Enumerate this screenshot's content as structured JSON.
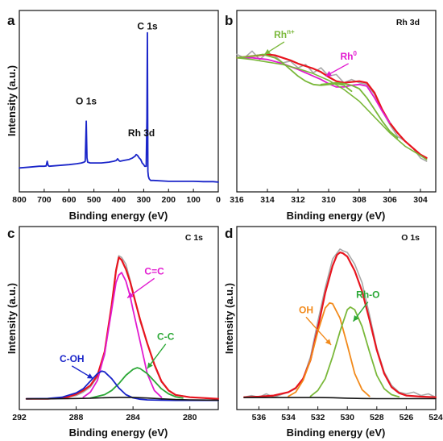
{
  "chart_data": [
    {
      "panel": "a",
      "type": "line",
      "title": "",
      "xlabel": "Binding energy (eV)",
      "ylabel": "Intensity (a.u.)",
      "xlim": [
        800,
        0
      ],
      "ylim": [
        0,
        100
      ],
      "x_reversed": true,
      "xticks": [
        800,
        700,
        600,
        500,
        400,
        300,
        200,
        100,
        0
      ],
      "grid": false,
      "annotations": [
        {
          "text": "C 1s",
          "x": 285,
          "y": 92
        },
        {
          "text": "O 1s",
          "x": 531,
          "y": 47
        },
        {
          "text": "Rh 3d",
          "x": 309,
          "y": 28
        }
      ],
      "series": [
        {
          "color": "#1a25c9",
          "x": [
            800,
            760,
            720,
            700,
            692,
            688,
            684,
            680,
            640,
            600,
            570,
            550,
            540,
            535,
            531,
            528,
            525,
            515,
            500,
            470,
            440,
            420,
            410,
            405,
            400,
            395,
            380,
            360,
            345,
            335,
            330,
            325,
            318,
            312,
            309,
            306,
            300,
            296,
            290,
            287,
            285,
            283,
            281,
            278,
            272,
            260,
            200,
            150,
            100,
            60,
            20,
            0
          ],
          "y": [
            10,
            10.5,
            11,
            11,
            11.2,
            14,
            11.5,
            11,
            11.5,
            12,
            12.5,
            13,
            13.5,
            14,
            38,
            16,
            13.5,
            13,
            13,
            13,
            13.5,
            14,
            14.5,
            15.5,
            14.5,
            14,
            14.5,
            15,
            16,
            17,
            18,
            17.5,
            16,
            15,
            14,
            13,
            12,
            11,
            11,
            40,
            91,
            8,
            5,
            3.5,
            2.5,
            2.5,
            2,
            2,
            2,
            1.8,
            1.8,
            1.5
          ]
        }
      ]
    },
    {
      "panel": "b",
      "type": "line",
      "title": "Rh 3d",
      "xlabel": "Binding energy (eV)",
      "ylabel": "",
      "xlim": [
        316,
        303
      ],
      "ylim": [
        0,
        100
      ],
      "x_reversed": true,
      "xticks": [
        316,
        314,
        312,
        310,
        308,
        306,
        304
      ],
      "grid": false,
      "annotations": [
        {
          "text": "Rh",
          "sup": "n+",
          "x": 312.9,
          "y": 87,
          "color": "#7ab83a",
          "arrow_to": [
            314.2,
            78
          ]
        },
        {
          "text": "Rh",
          "sup": "0",
          "x": 308.7,
          "y": 74,
          "color": "#e21bd0",
          "arrow_to": [
            310.2,
            65
          ]
        }
      ],
      "series": [
        {
          "role": "raw",
          "color": "#a8a8a8",
          "x": [
            316,
            315.5,
            315,
            314.5,
            314,
            313.5,
            313,
            312.5,
            312,
            311.5,
            311,
            310.5,
            310,
            309.5,
            309,
            308.5,
            308,
            307.5,
            307,
            306.5,
            306,
            305.5,
            305,
            304.5,
            304,
            303.6
          ],
          "y": [
            78,
            76,
            80,
            75,
            79,
            77,
            73,
            74,
            70,
            72,
            67,
            70,
            65,
            66,
            61,
            63,
            61,
            60,
            54,
            44,
            36,
            29,
            26,
            22,
            16,
            14
          ]
        },
        {
          "role": "fit",
          "color": "#e8141e",
          "x": [
            316,
            315,
            314,
            313.5,
            313,
            312.5,
            312,
            311.5,
            311,
            310.5,
            310,
            309.5,
            309,
            308.5,
            308,
            307.5,
            307,
            306.5,
            306,
            305.5,
            305,
            304.5,
            304,
            303.6
          ],
          "y": [
            76,
            77,
            78,
            77.5,
            76,
            74.5,
            72.5,
            71,
            69.5,
            67.5,
            64.5,
            62,
            61,
            61.5,
            62,
            61,
            55,
            45,
            37,
            31,
            26,
            22,
            18,
            16
          ]
        },
        {
          "role": "component",
          "color": "#e21bd0",
          "x": [
            316,
            315,
            314,
            313,
            312,
            311,
            310.5,
            310,
            309.5,
            309,
            308.5,
            308,
            307.5,
            307,
            306.5,
            306
          ],
          "y": [
            76,
            76,
            75,
            72.5,
            69,
            65,
            63,
            60.5,
            58.5,
            58.5,
            59.5,
            60,
            59,
            52,
            44,
            37
          ]
        },
        {
          "role": "component",
          "color": "#7ab83a",
          "x": [
            316,
            315,
            314.3,
            313.5,
            313,
            312.5,
            312,
            311.5,
            311,
            310.5,
            310,
            309.5,
            309,
            308.5
          ],
          "y": [
            76,
            77,
            78,
            76,
            73,
            69,
            65,
            62,
            60,
            59.5,
            60,
            60.5,
            59.5,
            56
          ]
        },
        {
          "role": "component",
          "color": "#7ab83a",
          "x": [
            310.5,
            310,
            309.5,
            309,
            308.5,
            308,
            307.5,
            307,
            306.5,
            306,
            305.5
          ],
          "y": [
            60,
            60.5,
            61,
            60.5,
            59.5,
            57.5,
            52,
            45,
            38,
            32,
            28
          ]
        },
        {
          "role": "background",
          "color": "#7ab83a",
          "x": [
            316,
            315,
            314,
            313,
            312,
            311,
            310,
            309,
            308,
            307,
            306,
            305,
            304,
            303.6
          ],
          "y": [
            76,
            75,
            73.5,
            72,
            69.5,
            66.5,
            62.5,
            57,
            50,
            40.5,
            31,
            23,
            17.5,
            15
          ]
        }
      ]
    },
    {
      "panel": "c",
      "type": "line",
      "title": "C 1s",
      "xlabel": "Binding energy (eV)",
      "ylabel": "Intensity (a.u.)",
      "xlim": [
        292,
        278
      ],
      "ylim": [
        0,
        100
      ],
      "x_reversed": true,
      "xticks": [
        292,
        288,
        284,
        280
      ],
      "grid": false,
      "annotations": [
        {
          "text": "C=C",
          "x": 282.5,
          "y": 75,
          "color": "#e21bd0",
          "arrow_to": [
            284.4,
            62
          ]
        },
        {
          "text": "C-C",
          "x": 281.7,
          "y": 36,
          "color": "#2ba836",
          "arrow_to": [
            283,
            20
          ]
        },
        {
          "text": "C-OH",
          "x": 288.3,
          "y": 23,
          "color": "#1a25c9",
          "arrow_to": [
            286.8,
            14
          ]
        }
      ],
      "series": [
        {
          "role": "raw",
          "color": "#a8a8a8",
          "x": [
            291.5,
            290,
            289,
            288,
            287.5,
            287,
            286.5,
            286,
            285.5,
            285.2,
            285,
            284.8,
            284.5,
            284,
            283.5,
            283,
            282.5,
            282,
            281.5,
            281,
            280,
            279,
            278
          ],
          "y": [
            2,
            2,
            2.5,
            4,
            6,
            9,
            15,
            28,
            58,
            79,
            87,
            86,
            82,
            66,
            48,
            35,
            22,
            12,
            7,
            4.5,
            3,
            2.5,
            2
          ]
        },
        {
          "role": "fit",
          "color": "#e8141e",
          "x": [
            291.5,
            290,
            289,
            288.5,
            288,
            287.5,
            287,
            286.5,
            286,
            285.5,
            285.2,
            285,
            284.8,
            284.5,
            284.2,
            284,
            283.5,
            283,
            282.5,
            282,
            281.5,
            281,
            280,
            279,
            278
          ],
          "y": [
            2,
            2,
            2.6,
            3.3,
            4.8,
            7,
            10,
            16,
            30,
            58,
            78,
            86,
            84.5,
            79,
            71.5,
            65,
            49,
            35,
            22.5,
            12.5,
            7,
            4.3,
            3,
            2.5,
            2
          ]
        },
        {
          "role": "component",
          "color": "#e21bd0",
          "x": [
            287.5,
            287,
            286.5,
            286,
            285.5,
            285.2,
            285,
            284.8,
            284.5,
            284.2,
            284,
            283.5,
            283,
            282.5,
            282
          ],
          "y": [
            3,
            6,
            13,
            29,
            55,
            71,
            75.5,
            77,
            72,
            63,
            55,
            36,
            17,
            7,
            3
          ]
        },
        {
          "role": "component",
          "color": "#2ba836",
          "x": [
            287,
            286,
            285.5,
            285,
            284.5,
            284,
            283.7,
            283.5,
            283,
            282.5,
            282,
            281.5,
            281,
            280.5
          ],
          "y": [
            2.5,
            4.5,
            7,
            11,
            16,
            19.5,
            20.5,
            20,
            17,
            12.5,
            8,
            5,
            3.2,
            2.5
          ]
        },
        {
          "role": "component",
          "color": "#1a25c9",
          "x": [
            291.5,
            290,
            289,
            288,
            287.5,
            287,
            286.5,
            286.2,
            286,
            285.5,
            285,
            284.5,
            284,
            283.5,
            283,
            282,
            281,
            280,
            279,
            278
          ],
          "y": [
            2,
            2.2,
            3,
            5.5,
            8,
            12.5,
            17,
            18.5,
            18,
            14,
            8.5,
            4.5,
            2.6,
            1.8,
            1.4,
            1.2,
            1.1,
            1.1,
            1.1,
            1.1
          ]
        },
        {
          "role": "background",
          "color": "#111111",
          "x": [
            291.5,
            290,
            288,
            287,
            286,
            285,
            284,
            283,
            282,
            281,
            280,
            279,
            278
          ],
          "y": [
            2,
            2,
            2.2,
            2.4,
            2.7,
            2.9,
            2.9,
            2.5,
            2.0,
            1.6,
            1.4,
            1.3,
            1.2
          ]
        }
      ]
    },
    {
      "panel": "d",
      "type": "line",
      "title": "O 1s",
      "xlabel": "Binding energy (eV)",
      "ylabel": "Intensity (a.u.)",
      "xlim": [
        537.5,
        524
      ],
      "ylim": [
        0,
        100
      ],
      "x_reversed": true,
      "xticks": [
        536,
        534,
        532,
        530,
        528,
        526,
        524
      ],
      "grid": false,
      "annotations": [
        {
          "text": "OH",
          "x": 532.8,
          "y": 52,
          "color": "#f28a1b",
          "arrow_to": [
            531.1,
            34
          ]
        },
        {
          "text": "Rh-O",
          "x": 528.6,
          "y": 61,
          "color": "#2ba836",
          "arrow_to": [
            529.6,
            48
          ]
        }
      ],
      "series": [
        {
          "role": "raw",
          "color": "#a8a8a8",
          "x": [
            537,
            536.5,
            536,
            535.5,
            535,
            534.5,
            534,
            533.5,
            533,
            532.5,
            532,
            531.5,
            531,
            530.5,
            530.3,
            530,
            529.5,
            529,
            528.5,
            528,
            527.5,
            527,
            526.5,
            526,
            525.5,
            525,
            524.5,
            524
          ],
          "y": [
            3,
            4,
            3,
            5,
            3,
            4.5,
            6,
            8,
            14,
            27,
            48,
            68,
            85,
            91,
            90,
            89,
            82,
            71,
            52,
            32,
            18,
            10,
            6,
            5,
            6,
            4,
            5,
            3
          ]
        },
        {
          "role": "fit",
          "color": "#e8141e",
          "x": [
            537,
            536,
            535,
            534,
            533.5,
            533,
            532.5,
            532,
            531.5,
            531,
            530.7,
            530.5,
            530.3,
            530,
            529.5,
            529,
            528.5,
            528,
            527.5,
            527,
            526.5,
            526,
            525,
            524
          ],
          "y": [
            3,
            3.3,
            4,
            6,
            8.5,
            14,
            25,
            44,
            65,
            81,
            87.5,
            89,
            88.5,
            86.5,
            78,
            66,
            49,
            31,
            17,
            9,
            5.5,
            4,
            3.3,
            3
          ]
        },
        {
          "role": "component",
          "color": "#f28a1b",
          "x": [
            534,
            533.5,
            533,
            532.5,
            532,
            531.5,
            531.2,
            531,
            530.5,
            530,
            529.5,
            529,
            528.5
          ],
          "y": [
            3.5,
            6,
            13,
            25,
            42,
            56,
            59,
            58.5,
            50,
            34,
            17,
            7.5,
            3.5
          ]
        },
        {
          "role": "component",
          "color": "#7ab83a",
          "x": [
            532.5,
            532,
            531.5,
            531,
            530.5,
            530,
            529.8,
            529.5,
            529,
            528.5,
            528,
            527.5,
            527,
            526.5
          ],
          "y": [
            3.5,
            7,
            14,
            27,
            42,
            55,
            56.5,
            55,
            45,
            30,
            16,
            8,
            4.5,
            3.2
          ]
        },
        {
          "role": "background",
          "color": "#111111",
          "x": [
            537,
            536,
            535,
            534,
            533,
            532,
            531,
            530,
            529,
            528,
            527,
            526,
            525,
            524
          ],
          "y": [
            2.8,
            2.8,
            2.8,
            2.8,
            2.8,
            2.8,
            2.7,
            2.4,
            2.2,
            2.1,
            2.1,
            2.1,
            2.1,
            2.1
          ]
        }
      ]
    }
  ]
}
